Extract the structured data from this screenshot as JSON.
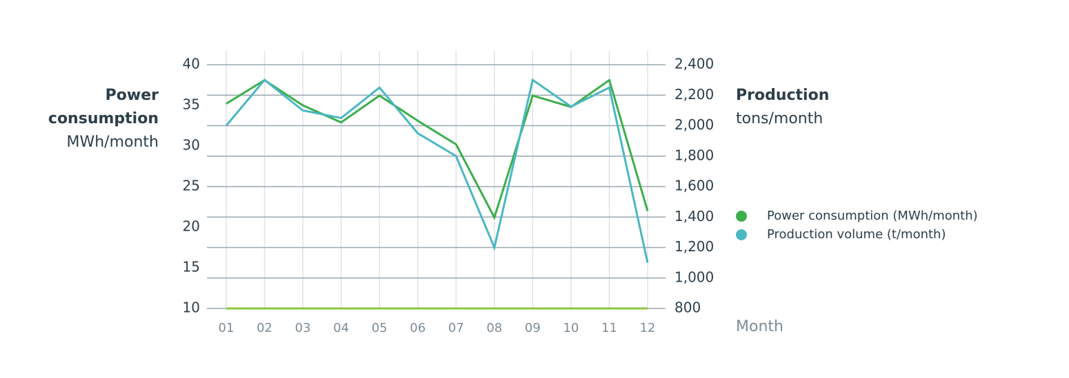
{
  "chart_data": {
    "type": "line",
    "y_label": "Power consumption",
    "y_unit": "MWh/month",
    "y2_label": "Production",
    "y2_unit": "tons/month",
    "x_label": "Month",
    "categories": [
      "01",
      "02",
      "03",
      "04",
      "05",
      "06",
      "07",
      "08",
      "09",
      "10",
      "11",
      "12"
    ],
    "series": [
      {
        "name": "Power consumption (MWh/month)",
        "color": "#3cae4b",
        "values": [
          35.2,
          38.1,
          35.0,
          32.9,
          36.2,
          33.1,
          30.2,
          21.2,
          36.2,
          34.8,
          38.1,
          22.0
        ]
      },
      {
        "name": "Production volume (t/month)",
        "color": "#4ab7c3",
        "axis": "y2",
        "values": [
          2000,
          2300,
          2100,
          2050,
          2250,
          1950,
          1800,
          1200,
          2300,
          2125,
          2250,
          1100
        ]
      }
    ],
    "ylim": [
      10,
      40
    ],
    "yticks": [
      10,
      15,
      20,
      25,
      30,
      35,
      40
    ],
    "y2lim": [
      800,
      2400
    ],
    "y2ticks": [
      800,
      {
        "value": 1000,
        "label": "1,000"
      },
      {
        "value": 1200,
        "label": "1,200"
      },
      {
        "value": 1400,
        "label": "1,400"
      },
      {
        "value": 1600,
        "label": "1,600"
      },
      {
        "value": 1800,
        "label": "1,800"
      },
      {
        "value": 2000,
        "label": "2,000"
      },
      {
        "value": 2200,
        "label": "2,200"
      },
      {
        "value": 2400,
        "label": "2,400"
      }
    ],
    "grid": true,
    "legend": "right"
  }
}
